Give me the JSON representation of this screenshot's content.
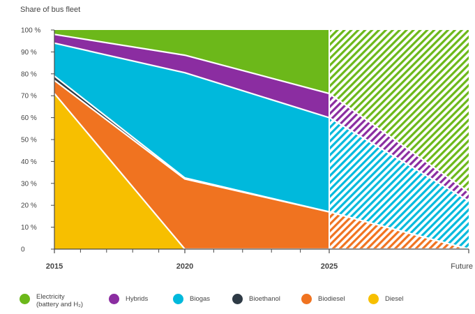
{
  "chart_data": {
    "type": "area",
    "stacked": true,
    "ylabel": "Share of bus fleet",
    "categories": [
      "2015",
      "2020",
      "2025",
      "Future"
    ],
    "y_ticks": [
      "0",
      "10 %",
      "20 %",
      "30 %",
      "40 %",
      "50 %",
      "60 %",
      "70 %",
      "80 %",
      "90 %",
      "100 %"
    ],
    "ylim": [
      0,
      100
    ],
    "projected_segment": "2025–Future (hatched)",
    "series": [
      {
        "name": "Diesel",
        "color": "#f7bf00",
        "values": [
          71,
          0,
          0,
          0
        ]
      },
      {
        "name": "Biodiesel",
        "color": "#f07320",
        "values": [
          6,
          32,
          17,
          0
        ]
      },
      {
        "name": "Bioethanol",
        "color": "#2e3a45",
        "values": [
          2,
          0.5,
          0,
          0
        ]
      },
      {
        "name": "Biogas",
        "color": "#00b9dc",
        "values": [
          15,
          48,
          43,
          22
        ]
      },
      {
        "name": "Hybrids",
        "color": "#8b2da1",
        "values": [
          4,
          8,
          11,
          4
        ]
      },
      {
        "name": "Electricity (battery and H₂)",
        "color": "#6cb81a",
        "values": [
          2,
          11.5,
          29,
          74
        ]
      }
    ]
  },
  "legend": [
    {
      "label": "Electricity",
      "sub": "(battery and H₂)",
      "color": "#6cb81a",
      "icon": "circle"
    },
    {
      "label": "Hybrids",
      "sub": "",
      "color": "#8b2da1",
      "icon": "circle"
    },
    {
      "label": "Biogas",
      "sub": "",
      "color": "#00b9dc",
      "icon": "circle"
    },
    {
      "label": "Bioethanol",
      "sub": "",
      "color": "#2e3a45",
      "icon": "circle"
    },
    {
      "label": "Biodiesel",
      "sub": "",
      "color": "#f07320",
      "icon": "circle"
    },
    {
      "label": "Diesel",
      "sub": "",
      "color": "#f7bf00",
      "icon": "circle"
    }
  ]
}
